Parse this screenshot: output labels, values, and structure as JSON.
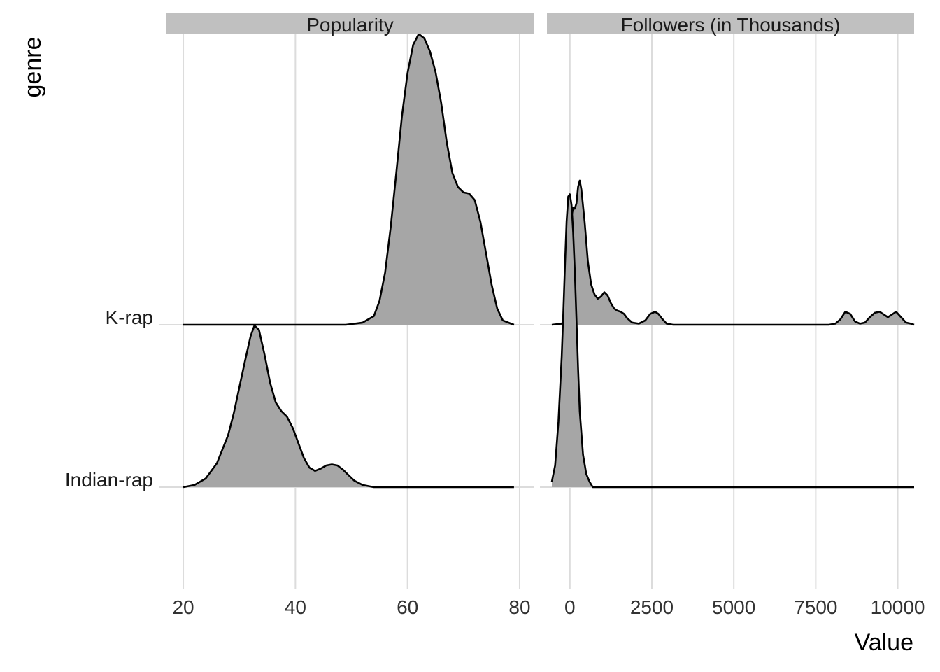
{
  "chart_data": {
    "type": "area",
    "subtype": "ridgeline",
    "xlabel": "Value",
    "ylabel": "genre",
    "fill_color": "#a6a6a6",
    "line_color": "#000000",
    "grid_color": "#dcdcdc",
    "strip_color": "#c0c0c0",
    "genres": [
      "Indian-rap",
      "K-rap"
    ],
    "panels": [
      {
        "title": "Popularity",
        "xlim": [
          17,
          82.5
        ],
        "xticks": [
          20,
          40,
          60,
          80
        ],
        "xtick_labels": [
          "20",
          "40",
          "60",
          "80"
        ],
        "series": [
          {
            "name": "Indian-rap",
            "x": [
              20,
              22,
              24,
              26,
              28,
              29,
              30,
              31,
              32,
              32.7,
              33.5,
              34.5,
              35.5,
              36.5,
              37.5,
              38.5,
              39.5,
              40.5,
              41.5,
              42.5,
              43.5,
              44.5,
              45.5,
              46.5,
              47.5,
              48.5,
              49.5,
              50.5,
              52,
              54,
              79
            ],
            "density": [
              0,
              0.02,
              0.08,
              0.22,
              0.48,
              0.68,
              0.92,
              1.16,
              1.39,
              1.49,
              1.45,
              1.22,
              0.96,
              0.78,
              0.7,
              0.65,
              0.55,
              0.41,
              0.27,
              0.18,
              0.15,
              0.17,
              0.2,
              0.21,
              0.2,
              0.16,
              0.11,
              0.06,
              0.02,
              0,
              0
            ]
          },
          {
            "name": "K-rap",
            "x": [
              20,
              49,
              52,
              54,
              55,
              56,
              57,
              58,
              59,
              60,
              61,
              62,
              63,
              64,
              65,
              66,
              67,
              68,
              69,
              70,
              71,
              72,
              73,
              74,
              75,
              76,
              77,
              79
            ],
            "density": [
              0,
              0,
              0.02,
              0.08,
              0.22,
              0.48,
              0.9,
              1.4,
              1.92,
              2.32,
              2.58,
              2.68,
              2.64,
              2.52,
              2.33,
              2.05,
              1.68,
              1.4,
              1.27,
              1.22,
              1.21,
              1.15,
              0.95,
              0.66,
              0.37,
              0.15,
              0.04,
              0
            ]
          }
        ]
      },
      {
        "title": "Followers (in Thousands)",
        "xlim": [
          -700,
          10500
        ],
        "xticks": [
          0,
          2500,
          5000,
          7500,
          10000
        ],
        "xtick_labels": [
          "0",
          "2500",
          "5000",
          "7500",
          "10000"
        ],
        "series": [
          {
            "name": "Indian-rap",
            "x": [
              -550,
              -450,
              -350,
              -250,
              -200,
              -150,
              -100,
              -50,
              0,
              50,
              100,
              150,
              200,
              250,
              300,
              400,
              500,
              600,
              700,
              10500
            ],
            "density": [
              0.05,
              0.2,
              0.6,
              1.2,
              1.6,
              2.05,
              2.45,
              2.68,
              2.7,
              2.6,
              2.35,
              2.0,
              1.55,
              1.1,
              0.7,
              0.3,
              0.12,
              0.05,
              0,
              0
            ]
          },
          {
            "name": "K-rap",
            "x": [
              -550,
              -250,
              -150,
              -100,
              -50,
              0,
              50,
              100,
              150,
              200,
              250,
              300,
              350,
              450,
              550,
              650,
              750,
              850,
              950,
              1050,
              1150,
              1250,
              1350,
              1450,
              1550,
              1650,
              1750,
              1900,
              2100,
              2300,
              2450,
              2600,
              2700,
              2800,
              2950,
              3150,
              3500,
              7900,
              8100,
              8250,
              8400,
              8550,
              8700,
              8850,
              9000,
              9150,
              9300,
              9450,
              9600,
              9700,
              9800,
              9950,
              10100,
              10250,
              10400,
              10500
            ],
            "density": [
              0,
              0.01,
              0.05,
              0.13,
              0.35,
              0.7,
              1.0,
              1.08,
              1.07,
              1.12,
              1.27,
              1.33,
              1.25,
              0.95,
              0.58,
              0.37,
              0.28,
              0.24,
              0.26,
              0.3,
              0.27,
              0.2,
              0.15,
              0.13,
              0.12,
              0.1,
              0.06,
              0.02,
              0.01,
              0.04,
              0.1,
              0.12,
              0.1,
              0.06,
              0.01,
              0,
              0,
              0,
              0.01,
              0.05,
              0.12,
              0.1,
              0.03,
              0.01,
              0.02,
              0.07,
              0.11,
              0.12,
              0.09,
              0.07,
              0.09,
              0.12,
              0.07,
              0.02,
              0.01,
              0
            ]
          }
        ]
      }
    ]
  }
}
